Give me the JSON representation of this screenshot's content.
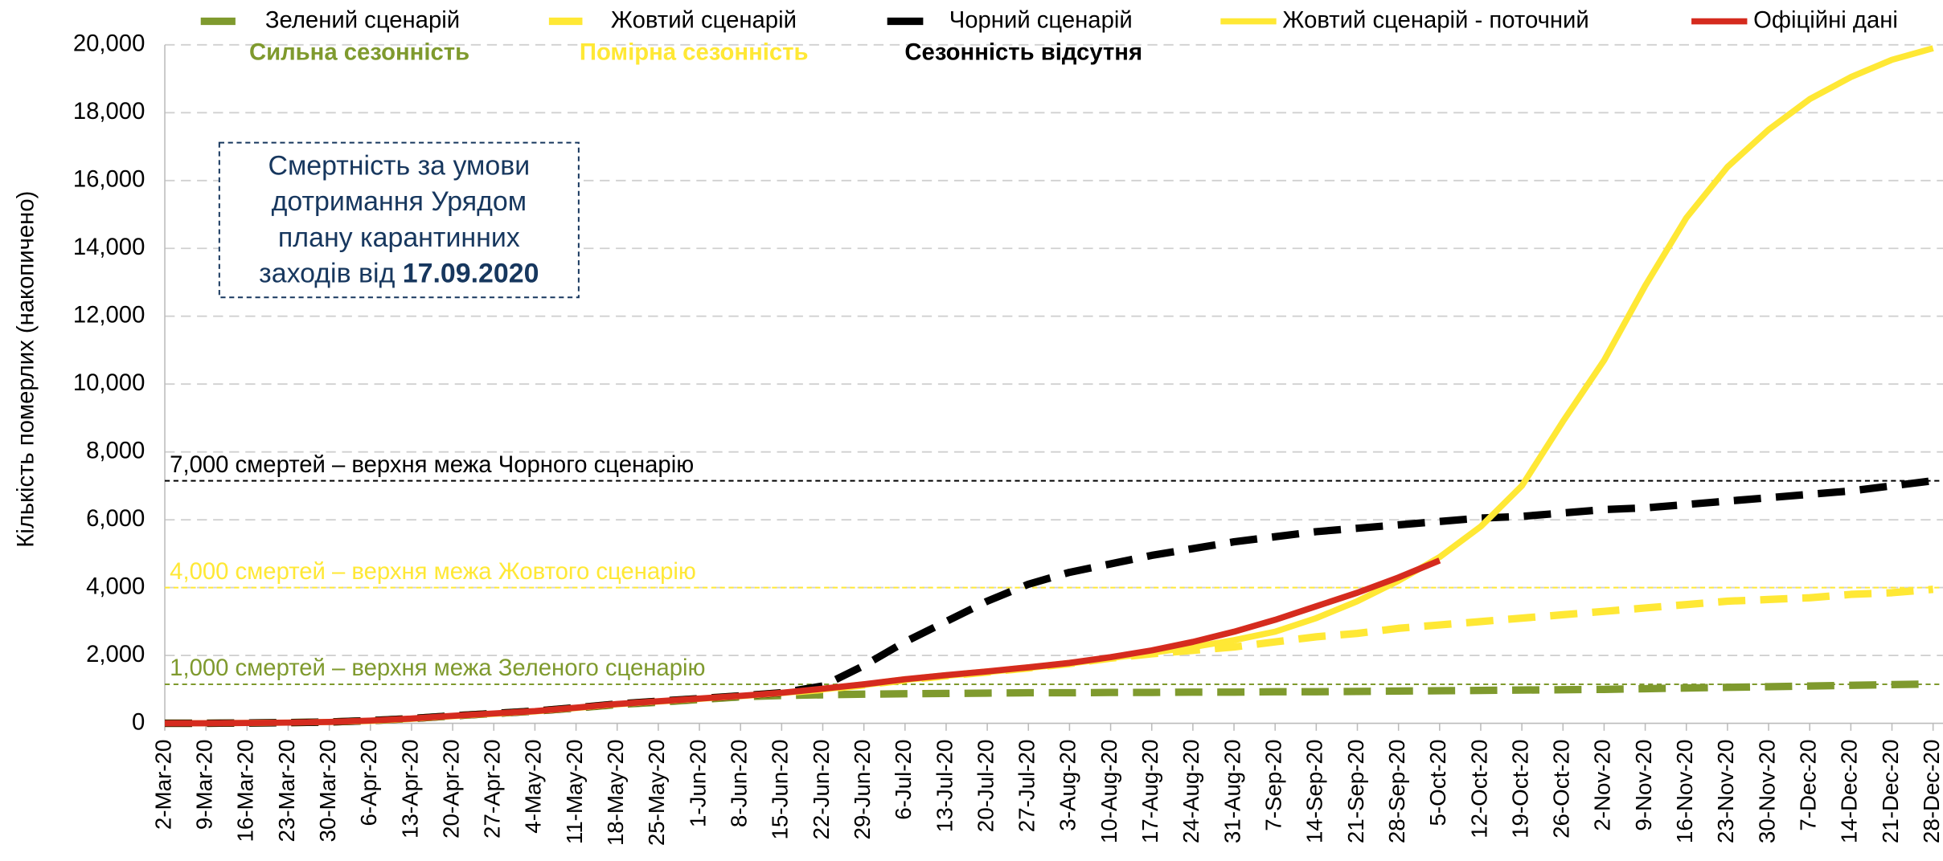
{
  "chart_data": {
    "type": "line",
    "y_label": "Кількість померлих (накопичено)",
    "categories": [
      "2-Mar-20",
      "9-Mar-20",
      "16-Mar-20",
      "23-Mar-20",
      "30-Mar-20",
      "6-Apr-20",
      "13-Apr-20",
      "20-Apr-20",
      "27-Apr-20",
      "4-May-20",
      "11-May-20",
      "18-May-20",
      "25-May-20",
      "1-Jun-20",
      "8-Jun-20",
      "15-Jun-20",
      "22-Jun-20",
      "29-Jun-20",
      "6-Jul-20",
      "13-Jul-20",
      "20-Jul-20",
      "27-Jul-20",
      "3-Aug-20",
      "10-Aug-20",
      "17-Aug-20",
      "24-Aug-20",
      "31-Aug-20",
      "7-Sep-20",
      "14-Sep-20",
      "21-Sep-20",
      "28-Sep-20",
      "5-Oct-20",
      "12-Oct-20",
      "19-Oct-20",
      "26-Oct-20",
      "2-Nov-20",
      "9-Nov-20",
      "16-Nov-20",
      "23-Nov-20",
      "30-Nov-20",
      "7-Dec-20",
      "14-Dec-20",
      "21-Dec-20",
      "28-Dec-20"
    ],
    "series": [
      {
        "name": "Зелений сценарій",
        "subtitle": "Сильна сезонність",
        "color": "#7f9a2e",
        "dashed": true,
        "values": [
          0,
          2,
          10,
          20,
          40,
          80,
          140,
          220,
          290,
          360,
          450,
          550,
          620,
          700,
          780,
          820,
          840,
          860,
          870,
          880,
          890,
          900,
          900,
          910,
          910,
          920,
          920,
          930,
          930,
          940,
          950,
          960,
          970,
          980,
          990,
          1000,
          1020,
          1040,
          1060,
          1080,
          1100,
          1120,
          1140,
          1160
        ]
      },
      {
        "name": "Жовтий сценарій",
        "subtitle": "Помірна сезонність",
        "color": "#ffe835",
        "dashed": true,
        "values": [
          0,
          2,
          10,
          20,
          40,
          80,
          140,
          220,
          290,
          360,
          460,
          570,
          650,
          730,
          810,
          900,
          1000,
          1130,
          1280,
          1400,
          1510,
          1630,
          1760,
          1920,
          2050,
          2150,
          2250,
          2400,
          2550,
          2650,
          2800,
          2900,
          3000,
          3100,
          3200,
          3300,
          3400,
          3500,
          3600,
          3650,
          3700,
          3800,
          3850,
          3950
        ]
      },
      {
        "name": "Чорний сценарій",
        "subtitle": "Сезонність відсутня",
        "color": "#000000",
        "dashed": true,
        "values": [
          0,
          2,
          10,
          20,
          40,
          80,
          140,
          220,
          290,
          360,
          460,
          570,
          650,
          730,
          810,
          900,
          1100,
          1700,
          2400,
          3000,
          3600,
          4100,
          4450,
          4700,
          4950,
          5150,
          5350,
          5500,
          5650,
          5750,
          5850,
          5950,
          6050,
          6100,
          6200,
          6300,
          6350,
          6450,
          6550,
          6650,
          6750,
          6850,
          7000,
          7150
        ]
      },
      {
        "name": "Жовтий сценарій - поточний",
        "color": "#ffe835",
        "dashed": false,
        "values": [
          0,
          2,
          10,
          20,
          40,
          70,
          130,
          210,
          280,
          350,
          450,
          560,
          640,
          720,
          800,
          890,
          1000,
          1130,
          1280,
          1400,
          1510,
          1630,
          1760,
          1920,
          2080,
          2250,
          2450,
          2700,
          3100,
          3600,
          4200,
          4900,
          5800,
          7000,
          8900,
          10700,
          12900,
          14900,
          16400,
          17500,
          18400,
          19050,
          19560,
          19900
        ]
      },
      {
        "name": "Офіційні дані",
        "color": "#d52b1e",
        "dashed": false,
        "values": [
          0,
          2,
          10,
          20,
          40,
          80,
          140,
          220,
          290,
          360,
          460,
          570,
          650,
          730,
          810,
          900,
          1020,
          1150,
          1300,
          1420,
          1530,
          1650,
          1780,
          1950,
          2150,
          2400,
          2700,
          3050,
          3450,
          3850,
          4300,
          4800,
          null,
          null,
          null,
          null,
          null,
          null,
          null,
          null,
          null,
          null,
          null,
          null
        ]
      }
    ],
    "reference_lines": [
      {
        "value": 7150,
        "label": "7,000 смертей – верхня межа Чорного сценарію",
        "color": "#000000"
      },
      {
        "value": 4000,
        "label": "4,000 смертей – верхня межа Жовтого сценарію",
        "color": "#ffe835"
      },
      {
        "value": 1150,
        "label": "1,000 смертей – верхня межа Зеленого сценарію",
        "color": "#7f9a2e"
      }
    ],
    "annotation": {
      "lines": [
        "Смертність за умови",
        "дотримання Урядом",
        "плану карантинних",
        "заходів від "
      ],
      "bold": "17.09.2020"
    },
    "ylim": [
      0,
      20000
    ],
    "yticks": [
      {
        "value": 0,
        "label": "0"
      },
      {
        "value": 2000,
        "label": "2,000"
      },
      {
        "value": 4000,
        "label": "4,000"
      },
      {
        "value": 6000,
        "label": "6,000"
      },
      {
        "value": 8000,
        "label": "8,000"
      },
      {
        "value": 10000,
        "label": "10,000"
      },
      {
        "value": 12000,
        "label": "12,000"
      },
      {
        "value": 14000,
        "label": "14,000"
      },
      {
        "value": 16000,
        "label": "16,000"
      },
      {
        "value": 18000,
        "label": "18,000"
      },
      {
        "value": 20000,
        "label": "20,000"
      }
    ],
    "grid": true,
    "legend": "top"
  }
}
